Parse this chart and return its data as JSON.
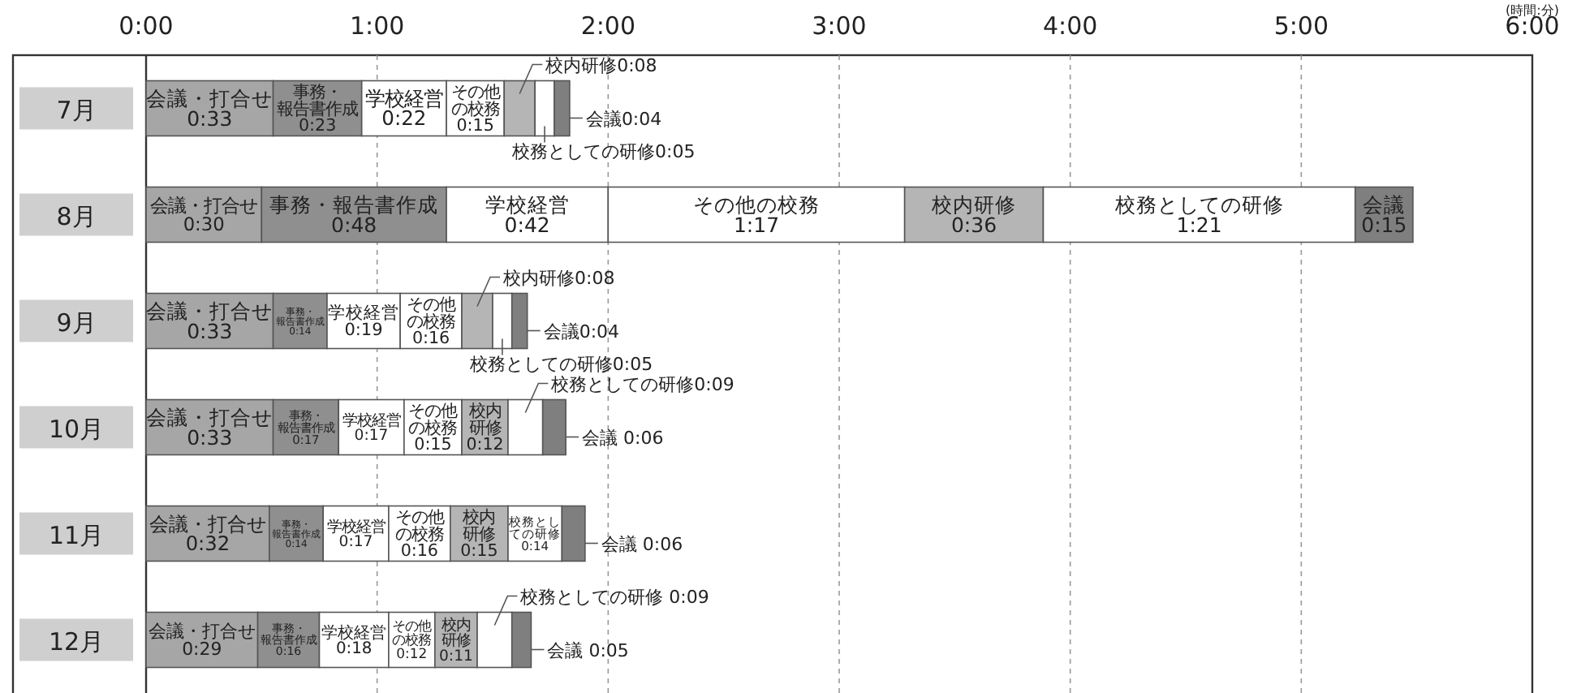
{
  "chart_data": {
    "type": "bar",
    "orientation": "horizontal",
    "stacked": true,
    "xlabel": "(時間:分)",
    "grid": "x",
    "categories": [
      "7月",
      "8月",
      "9月",
      "10月",
      "11月",
      "12月"
    ],
    "xlim": [
      0,
      360
    ],
    "xticks": [
      {
        "value": 0,
        "label": "0:00"
      },
      {
        "value": 60,
        "label": "1:00"
      },
      {
        "value": 120,
        "label": "2:00"
      },
      {
        "value": 180,
        "label": "3:00"
      },
      {
        "value": 240,
        "label": "4:00"
      },
      {
        "value": 300,
        "label": "5:00"
      },
      {
        "value": 360,
        "label": "6:00"
      }
    ],
    "series": [
      {
        "color": "#a6a6a6",
        "values": [
          33,
          30,
          33,
          33,
          32,
          29
        ],
        "value_labels": [
          "会議・打合せ0:33",
          "会議・打合せ0:30",
          "会議・打合せ0:33",
          "会議・打合せ0:33",
          "会議・打合せ0:32",
          "会議・打合せ0:29"
        ]
      },
      {
        "color": "#8f8f8f",
        "values": [
          23,
          48,
          14,
          17,
          14,
          16
        ],
        "value_labels": [
          "事務・報告書作成0:23",
          "事務・報告書作成0:48",
          "事務・報告書作成0:14",
          "事務・報告書作成0:17",
          "事務・報告書作成0:14",
          "事務・報告書作成0:16"
        ]
      },
      {
        "color": "#ffffff",
        "values": [
          22,
          42,
          19,
          17,
          17,
          18
        ],
        "value_labels": [
          "学校経営0:22",
          "学校経営0:42",
          "学校経営0:19",
          "学校経営0:17",
          "学校経営0:17",
          "学校経営0:18"
        ]
      },
      {
        "color": "#ffffff",
        "values": [
          15,
          77,
          16,
          15,
          16,
          12
        ],
        "value_labels": [
          "その他の校務0:15",
          "その他の校務1:17",
          "その他の校務0:16",
          "その他の校務0:15",
          "その他の校務0:16",
          "その他の校務0:12"
        ]
      },
      {
        "color": "#b5b5b5",
        "values": [
          8,
          36,
          8,
          12,
          15,
          11
        ],
        "value_labels": [
          "校内研修0:08",
          "校内研修0:36",
          "校内研修0:08",
          "校内研修0:12",
          "校内研修0:15",
          "校内研修0:11"
        ]
      },
      {
        "color": "#ffffff",
        "values": [
          5,
          81,
          5,
          9,
          14,
          9
        ],
        "value_labels": [
          "校務としての研修0:05",
          "校務としての研修1:21",
          "校務としての研修0:05",
          "校務としての研修0:09",
          "校務としての研修0:14",
          "校務としての研修 0:09"
        ]
      },
      {
        "color": "#7f7f7f",
        "values": [
          4,
          15,
          4,
          6,
          6,
          5
        ],
        "value_labels": [
          "会議0:04",
          "会議0:15",
          "会議0:04",
          "会議 0:06",
          "会議 0:06",
          "会議 0:05"
        ]
      }
    ]
  }
}
